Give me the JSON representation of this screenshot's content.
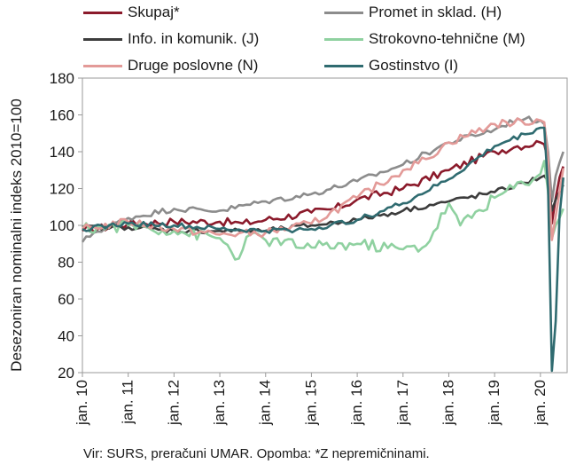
{
  "chart_data": {
    "type": "line",
    "ylabel": "Desezoniran nominalni indeks 2010=100",
    "ylim": [
      20,
      180
    ],
    "yticks": [
      20,
      40,
      60,
      80,
      100,
      120,
      140,
      160,
      180
    ],
    "xticks": [
      "jan. 10",
      "jan. 11",
      "jan. 12",
      "jan. 13",
      "jan. 14",
      "jan. 15",
      "jan. 16",
      "jan. 17",
      "jan. 18",
      "jan. 19",
      "jan. 20"
    ],
    "grid": false,
    "legend_position": "top",
    "x_start": "2010-01",
    "x_end": "2020-07",
    "series": [
      {
        "name": "Skupaj*",
        "color": "#8b1a2b",
        "anchors": [
          [
            "2010-01",
            97
          ],
          [
            "2011-01",
            101
          ],
          [
            "2012-01",
            102
          ],
          [
            "2013-01",
            102
          ],
          [
            "2013-07",
            101
          ],
          [
            "2014-01",
            103
          ],
          [
            "2015-01",
            107
          ],
          [
            "2015-07",
            109
          ],
          [
            "2016-01",
            114
          ],
          [
            "2017-01",
            120
          ],
          [
            "2018-01",
            130
          ],
          [
            "2019-01",
            140
          ],
          [
            "2019-07",
            143
          ],
          [
            "2020-01",
            145
          ],
          [
            "2020-02",
            144
          ],
          [
            "2020-03",
            135
          ],
          [
            "2020-04",
            101
          ],
          [
            "2020-05",
            115
          ],
          [
            "2020-06",
            126
          ],
          [
            "2020-07",
            132
          ]
        ]
      },
      {
        "name": "Promet in sklad. (H)",
        "color": "#8c8c8c",
        "anchors": [
          [
            "2010-01",
            91
          ],
          [
            "2010-04",
            96
          ],
          [
            "2011-01",
            104
          ],
          [
            "2012-01",
            109
          ],
          [
            "2013-01",
            108
          ],
          [
            "2014-01",
            113
          ],
          [
            "2015-01",
            117
          ],
          [
            "2016-01",
            124
          ],
          [
            "2017-01",
            133
          ],
          [
            "2018-01",
            145
          ],
          [
            "2019-01",
            152
          ],
          [
            "2019-07",
            158
          ],
          [
            "2020-01",
            157
          ],
          [
            "2020-02",
            155
          ],
          [
            "2020-03",
            140
          ],
          [
            "2020-04",
            113
          ],
          [
            "2020-05",
            127
          ],
          [
            "2020-06",
            134
          ],
          [
            "2020-07",
            140
          ]
        ]
      },
      {
        "name": "Info. in komunik. (J)",
        "color": "#3c3c3c",
        "anchors": [
          [
            "2010-01",
            99
          ],
          [
            "2011-01",
            99
          ],
          [
            "2012-01",
            97
          ],
          [
            "2013-01",
            97
          ],
          [
            "2014-01",
            97
          ],
          [
            "2015-01",
            100
          ],
          [
            "2016-01",
            103
          ],
          [
            "2017-01",
            108
          ],
          [
            "2018-01",
            113
          ],
          [
            "2019-01",
            118
          ],
          [
            "2020-01",
            126
          ],
          [
            "2020-02",
            127
          ],
          [
            "2020-03",
            124
          ],
          [
            "2020-04",
            108
          ],
          [
            "2020-05",
            114
          ],
          [
            "2020-06",
            118
          ],
          [
            "2020-07",
            122
          ]
        ]
      },
      {
        "name": "Strokovno-tehnične (M)",
        "color": "#8fd1a0",
        "anchors": [
          [
            "2010-01",
            98
          ],
          [
            "2011-01",
            100
          ],
          [
            "2012-01",
            97
          ],
          [
            "2013-01",
            93
          ],
          [
            "2013-06",
            82
          ],
          [
            "2013-09",
            95
          ],
          [
            "2014-01",
            92
          ],
          [
            "2015-01",
            88
          ],
          [
            "2016-01",
            90
          ],
          [
            "2017-01",
            87
          ],
          [
            "2017-07",
            89
          ],
          [
            "2018-01",
            112
          ],
          [
            "2018-04",
            100
          ],
          [
            "2019-01",
            115
          ],
          [
            "2020-01",
            128
          ],
          [
            "2020-02",
            135
          ],
          [
            "2020-03",
            118
          ],
          [
            "2020-04",
            93
          ],
          [
            "2020-05",
            100
          ],
          [
            "2020-06",
            104
          ],
          [
            "2020-07",
            109
          ]
        ]
      },
      {
        "name": "Druge poslovne (N)",
        "color": "#e39a98",
        "anchors": [
          [
            "2010-01",
            98
          ],
          [
            "2011-01",
            102
          ],
          [
            "2012-01",
            98
          ],
          [
            "2013-01",
            95
          ],
          [
            "2014-01",
            96
          ],
          [
            "2015-01",
            101
          ],
          [
            "2016-01",
            115
          ],
          [
            "2017-01",
            130
          ],
          [
            "2017-07",
            136
          ],
          [
            "2018-01",
            145
          ],
          [
            "2019-01",
            155
          ],
          [
            "2020-01",
            157
          ],
          [
            "2020-02",
            156
          ],
          [
            "2020-03",
            135
          ],
          [
            "2020-04",
            92
          ],
          [
            "2020-05",
            105
          ],
          [
            "2020-06",
            118
          ],
          [
            "2020-07",
            131
          ]
        ]
      },
      {
        "name": "Gostinstvo (I)",
        "color": "#2f6b70",
        "anchors": [
          [
            "2010-01",
            98
          ],
          [
            "2011-01",
            101
          ],
          [
            "2012-01",
            100
          ],
          [
            "2013-01",
            98
          ],
          [
            "2014-01",
            97
          ],
          [
            "2015-01",
            98
          ],
          [
            "2016-01",
            103
          ],
          [
            "2017-01",
            112
          ],
          [
            "2018-01",
            125
          ],
          [
            "2019-01",
            143
          ],
          [
            "2020-01",
            153
          ],
          [
            "2020-02",
            153
          ],
          [
            "2020-03",
            120
          ],
          [
            "2020-04",
            21
          ],
          [
            "2020-05",
            48
          ],
          [
            "2020-06",
            105
          ],
          [
            "2020-07",
            126
          ]
        ]
      }
    ]
  },
  "source_note": "Vir: SURS, preračuni UMAR. Opomba: *Z nepremičninami."
}
